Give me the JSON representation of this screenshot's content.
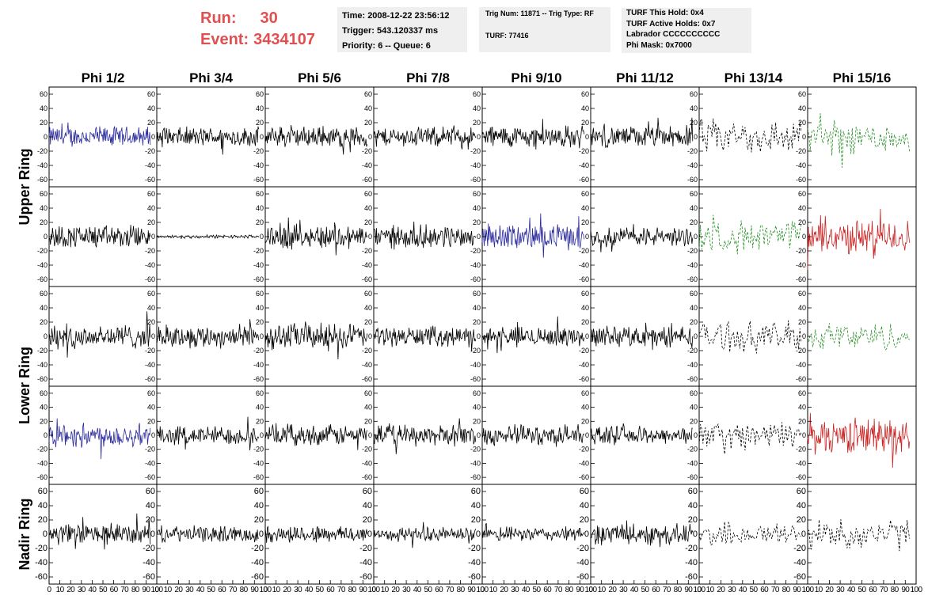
{
  "header": {
    "run_label": "Run:",
    "run_value": "30",
    "event_label": "Event:",
    "event_value": "3434107",
    "time_line": "Time: 2008-12-22 23:56:12",
    "trigger_line": "Trigger: 543.120337 ms",
    "priority_line": "Priority: 6 -- Queue: 6",
    "trig_line": "Trig Num: 11871 -- Trig Type: RF",
    "turf_line": "TURF: 77416",
    "turf_hold_line": "TURF This Hold: 0x4",
    "turf_active_line": "TURF Active Holds: 0x7",
    "labrador_line": "Labrador CCCCCCCCCC",
    "phi_mask_line": "Phi Mask: 0x7000"
  },
  "colors": {
    "run_text": "#e05050",
    "box_bg": "#efefef",
    "black": "#000000",
    "blue": "#2b2b9e",
    "green": "#1e8c1e",
    "red": "#cc2222"
  },
  "chart_data": {
    "type": "line",
    "column_titles": [
      "Phi 1/2",
      "Phi 3/4",
      "Phi 5/6",
      "Phi 7/8",
      "Phi 9/10",
      "Phi 11/12",
      "Phi 13/14",
      "Phi 15/16"
    ],
    "ring_labels": [
      "Upper Ring",
      "Lower Ring",
      "Nadir Ring"
    ],
    "rows": 5,
    "row_ring_span": [
      [
        0,
        1
      ],
      [
        2,
        3
      ],
      [
        4,
        4
      ]
    ],
    "ylim": [
      -70,
      70
    ],
    "yticks": [
      -60,
      -40,
      -20,
      0,
      20,
      40,
      60
    ],
    "yticks_nadir": [
      -60,
      -40,
      -20,
      0,
      20,
      40,
      60
    ],
    "xlim": [
      0,
      100
    ],
    "xticks": [
      0,
      10,
      20,
      30,
      40,
      50,
      60,
      70,
      80,
      90,
      100
    ],
    "grid": false,
    "panels": [
      {
        "row": 0,
        "col": 0,
        "color": "blue",
        "style": "solid",
        "amp": 12
      },
      {
        "row": 0,
        "col": 1,
        "color": "black",
        "style": "solid",
        "amp": 11
      },
      {
        "row": 0,
        "col": 2,
        "color": "black",
        "style": "solid",
        "amp": 12
      },
      {
        "row": 0,
        "col": 3,
        "color": "black",
        "style": "solid",
        "amp": 11
      },
      {
        "row": 0,
        "col": 4,
        "color": "black",
        "style": "solid",
        "amp": 13
      },
      {
        "row": 0,
        "col": 5,
        "color": "black",
        "style": "solid",
        "amp": 12
      },
      {
        "row": 0,
        "col": 6,
        "color": "black",
        "style": "dashed",
        "amp": 20
      },
      {
        "row": 0,
        "col": 7,
        "color": "green",
        "style": "dashed",
        "amp": 20
      },
      {
        "row": 1,
        "col": 0,
        "color": "black",
        "style": "solid",
        "amp": 13
      },
      {
        "row": 1,
        "col": 1,
        "color": "black",
        "style": "solid",
        "amp": 2
      },
      {
        "row": 1,
        "col": 2,
        "color": "black",
        "style": "solid",
        "amp": 14
      },
      {
        "row": 1,
        "col": 3,
        "color": "black",
        "style": "solid",
        "amp": 13
      },
      {
        "row": 1,
        "col": 4,
        "color": "blue",
        "style": "solid",
        "amp": 14
      },
      {
        "row": 1,
        "col": 5,
        "color": "black",
        "style": "solid",
        "amp": 11
      },
      {
        "row": 1,
        "col": 6,
        "color": "green",
        "style": "dashed",
        "amp": 18
      },
      {
        "row": 1,
        "col": 7,
        "color": "red",
        "style": "solid",
        "amp": 19
      },
      {
        "row": 2,
        "col": 0,
        "color": "black",
        "style": "solid",
        "amp": 14
      },
      {
        "row": 2,
        "col": 1,
        "color": "black",
        "style": "solid",
        "amp": 13
      },
      {
        "row": 2,
        "col": 2,
        "color": "black",
        "style": "solid",
        "amp": 15
      },
      {
        "row": 2,
        "col": 3,
        "color": "black",
        "style": "solid",
        "amp": 11
      },
      {
        "row": 2,
        "col": 4,
        "color": "black",
        "style": "solid",
        "amp": 11
      },
      {
        "row": 2,
        "col": 5,
        "color": "black",
        "style": "solid",
        "amp": 12
      },
      {
        "row": 2,
        "col": 6,
        "color": "black",
        "style": "dashed",
        "amp": 17
      },
      {
        "row": 2,
        "col": 7,
        "color": "green",
        "style": "dashed",
        "amp": 16
      },
      {
        "row": 3,
        "col": 0,
        "color": "blue",
        "style": "solid",
        "amp": 14
      },
      {
        "row": 3,
        "col": 1,
        "color": "black",
        "style": "solid",
        "amp": 11
      },
      {
        "row": 3,
        "col": 2,
        "color": "black",
        "style": "solid",
        "amp": 12
      },
      {
        "row": 3,
        "col": 3,
        "color": "black",
        "style": "solid",
        "amp": 12
      },
      {
        "row": 3,
        "col": 4,
        "color": "black",
        "style": "solid",
        "amp": 12
      },
      {
        "row": 3,
        "col": 5,
        "color": "black",
        "style": "solid",
        "amp": 10
      },
      {
        "row": 3,
        "col": 6,
        "color": "black",
        "style": "dashed",
        "amp": 16
      },
      {
        "row": 3,
        "col": 7,
        "color": "red",
        "style": "solid",
        "amp": 20
      },
      {
        "row": 4,
        "col": 0,
        "color": "black",
        "style": "solid",
        "amp": 12
      },
      {
        "row": 4,
        "col": 1,
        "color": "black",
        "style": "solid",
        "amp": 9
      },
      {
        "row": 4,
        "col": 2,
        "color": "black",
        "style": "solid",
        "amp": 10
      },
      {
        "row": 4,
        "col": 3,
        "color": "black",
        "style": "solid",
        "amp": 8
      },
      {
        "row": 4,
        "col": 4,
        "color": "black",
        "style": "solid",
        "amp": 8
      },
      {
        "row": 4,
        "col": 5,
        "color": "black",
        "style": "solid",
        "amp": 12
      },
      {
        "row": 4,
        "col": 6,
        "color": "black",
        "style": "dashed",
        "amp": 14
      },
      {
        "row": 4,
        "col": 7,
        "color": "black",
        "style": "dashed",
        "amp": 18
      }
    ]
  }
}
